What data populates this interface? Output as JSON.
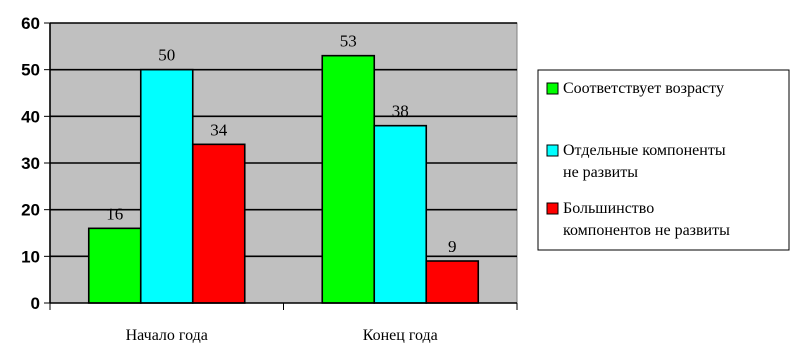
{
  "chart_data": {
    "type": "bar",
    "title": "",
    "xlabel": "",
    "ylabel": "",
    "ylim": [
      0,
      60
    ],
    "yticks": [
      0,
      10,
      20,
      30,
      40,
      50,
      60
    ],
    "grid": true,
    "legend_position": "right",
    "plot_background": "#c0c0c0",
    "categories": [
      "Начало года",
      "Конец года"
    ],
    "series": [
      {
        "name": "Соответствует возрасту",
        "color": "#00ff00",
        "values": [
          16,
          53
        ]
      },
      {
        "name": "Отдельные компоненты не развиты",
        "color": "#00ffff",
        "values": [
          50,
          38
        ]
      },
      {
        "name": "Большинство компонентов не развиты",
        "color": "#ff0000",
        "values": [
          34,
          9
        ]
      }
    ]
  }
}
